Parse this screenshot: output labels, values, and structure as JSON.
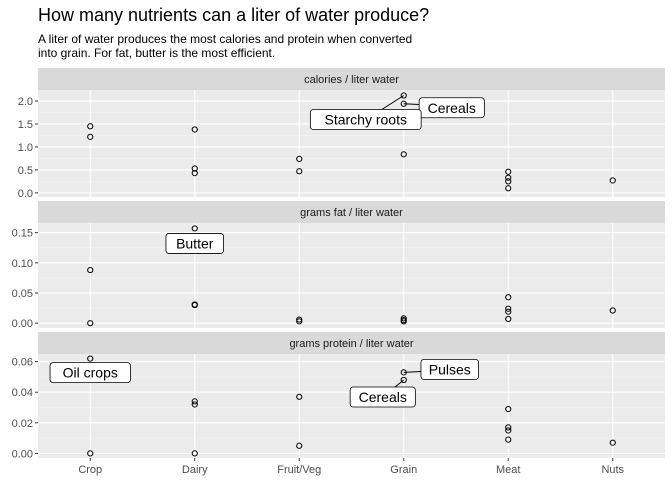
{
  "title": "How many nutrients can a liter of water produce?",
  "subtitle": [
    "A liter of water produces the most calories and protein when converted",
    "into grain. For fat, butter is the most efficient."
  ],
  "chart_data": {
    "type": "scatter",
    "categories": [
      "Crop",
      "Dairy",
      "Fruit/Veg",
      "Grain",
      "Meat",
      "Nuts"
    ],
    "panels": [
      {
        "strip": "calories / liter water",
        "ylim": [
          -0.09,
          2.24
        ],
        "yticks": [
          0.0,
          0.5,
          1.0,
          1.5,
          2.0
        ],
        "ytick_labels": [
          "0.0",
          "0.5",
          "1.0",
          "1.5",
          "2.0"
        ],
        "points": [
          {
            "x": "Crop",
            "y": 1.45
          },
          {
            "x": "Crop",
            "y": 1.22
          },
          {
            "x": "Dairy",
            "y": 1.38
          },
          {
            "x": "Dairy",
            "y": 0.53
          },
          {
            "x": "Dairy",
            "y": 0.43
          },
          {
            "x": "Fruit/Veg",
            "y": 0.74
          },
          {
            "x": "Fruit/Veg",
            "y": 0.47
          },
          {
            "x": "Grain",
            "y": 2.12
          },
          {
            "x": "Grain",
            "y": 1.94
          },
          {
            "x": "Grain",
            "y": 0.84
          },
          {
            "x": "Meat",
            "y": 0.46
          },
          {
            "x": "Meat",
            "y": 0.33
          },
          {
            "x": "Meat",
            "y": 0.25
          },
          {
            "x": "Meat",
            "y": 0.1
          },
          {
            "x": "Nuts",
            "y": 0.27
          }
        ],
        "annotations": [
          {
            "label": "Cereals",
            "x": "Grain",
            "y": 1.94,
            "side": "right"
          },
          {
            "label": "Starchy roots",
            "x": "Grain",
            "y": 2.12,
            "side": "left"
          }
        ]
      },
      {
        "strip": "grams fat / liter water",
        "ylim": [
          -0.008,
          0.166
        ],
        "yticks": [
          0.0,
          0.05,
          0.1,
          0.15
        ],
        "ytick_labels": [
          "0.00",
          "0.05",
          "0.10",
          "0.15"
        ],
        "points": [
          {
            "x": "Crop",
            "y": 0.088
          },
          {
            "x": "Crop",
            "y": 0.0
          },
          {
            "x": "Dairy",
            "y": 0.157
          },
          {
            "x": "Dairy",
            "y": 0.031
          },
          {
            "x": "Dairy",
            "y": 0.03
          },
          {
            "x": "Fruit/Veg",
            "y": 0.006
          },
          {
            "x": "Fruit/Veg",
            "y": 0.003
          },
          {
            "x": "Grain",
            "y": 0.008
          },
          {
            "x": "Grain",
            "y": 0.005
          },
          {
            "x": "Grain",
            "y": 0.003
          },
          {
            "x": "Meat",
            "y": 0.043
          },
          {
            "x": "Meat",
            "y": 0.024
          },
          {
            "x": "Meat",
            "y": 0.019
          },
          {
            "x": "Meat",
            "y": 0.007
          },
          {
            "x": "Nuts",
            "y": 0.021
          }
        ],
        "annotations": [
          {
            "label": "Butter",
            "x": "Dairy",
            "y": 0.157,
            "side": "below"
          }
        ]
      },
      {
        "strip": "grams protein / liter water",
        "ylim": [
          -0.003,
          0.065
        ],
        "yticks": [
          0.0,
          0.02,
          0.04,
          0.06
        ],
        "ytick_labels": [
          "0.00",
          "0.02",
          "0.04",
          "0.06"
        ],
        "points": [
          {
            "x": "Crop",
            "y": 0.062
          },
          {
            "x": "Crop",
            "y": 0.0
          },
          {
            "x": "Dairy",
            "y": 0.034
          },
          {
            "x": "Dairy",
            "y": 0.032
          },
          {
            "x": "Dairy",
            "y": 0.0
          },
          {
            "x": "Fruit/Veg",
            "y": 0.037
          },
          {
            "x": "Fruit/Veg",
            "y": 0.005
          },
          {
            "x": "Grain",
            "y": 0.053
          },
          {
            "x": "Grain",
            "y": 0.048
          },
          {
            "x": "Meat",
            "y": 0.029
          },
          {
            "x": "Meat",
            "y": 0.017
          },
          {
            "x": "Meat",
            "y": 0.015
          },
          {
            "x": "Meat",
            "y": 0.009
          },
          {
            "x": "Nuts",
            "y": 0.007
          }
        ],
        "annotations": [
          {
            "label": "Oil crops",
            "x": "Crop",
            "y": 0.062,
            "side": "below-left"
          },
          {
            "label": "Pulses",
            "x": "Grain",
            "y": 0.053,
            "side": "right"
          },
          {
            "label": "Cereals",
            "x": "Grain",
            "y": 0.048,
            "side": "below-left"
          }
        ]
      }
    ],
    "grid": true
  }
}
